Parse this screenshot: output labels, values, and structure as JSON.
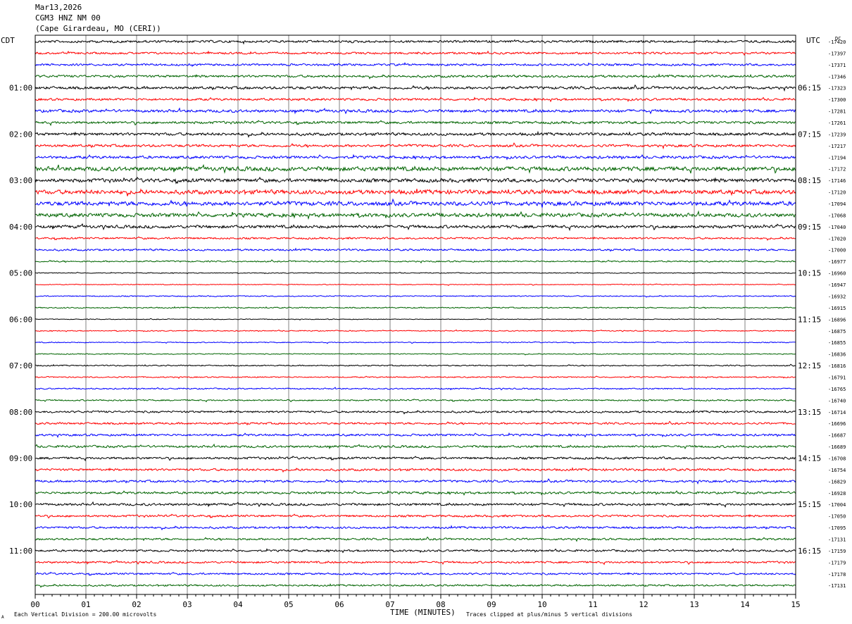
{
  "header": {
    "date": "Mar13,2026",
    "station": "CGM3 HNZ NM 00",
    "location": "(Cape Girardeau, MO (CERI))"
  },
  "left_label": "CDT",
  "right_label": "UTC",
  "right_corner_label": "DC",
  "footer": {
    "scale_note": "Each Vertical Division =  200.00 microvolts",
    "xlabel": "TIME (MINUTES)",
    "clip_note": "Traces clipped at plus/minus 5 vertical divisions",
    "corner_mark": "A"
  },
  "colors": {
    "black": "#000000",
    "red": "#ff0000",
    "blue": "#0000ff",
    "green": "#006400",
    "grid": "#808080"
  },
  "chart_data": {
    "type": "line",
    "x_ticks": [
      "00",
      "01",
      "02",
      "03",
      "04",
      "05",
      "06",
      "07",
      "08",
      "09",
      "10",
      "11",
      "12",
      "13",
      "14",
      "15"
    ],
    "xlim": [
      0,
      15
    ],
    "trace_color_cycle": [
      "black",
      "red",
      "blue",
      "green"
    ],
    "left_hour_labels": [
      "01:00",
      "02:00",
      "03:00",
      "04:00",
      "05:00",
      "06:00",
      "07:00",
      "08:00",
      "09:00",
      "10:00",
      "11:00"
    ],
    "right_hour_labels": [
      "06:15",
      "07:15",
      "08:15",
      "09:15",
      "10:15",
      "11:15",
      "12:15",
      "13:15",
      "14:15",
      "15:15",
      "16:15"
    ],
    "dc_offsets": [
      "-17420",
      "-17397",
      "-17371",
      "-17346",
      "-17323",
      "-17300",
      "-17281",
      "-17261",
      "-17239",
      "-17217",
      "-17194",
      "-17172",
      "-17146",
      "-17120",
      "-17094",
      "-17068",
      "-17040",
      "-17020",
      "-17000",
      "-16977",
      "-16960",
      "-16947",
      "-16932",
      "-16915",
      "-16896",
      "-16875",
      "-16855",
      "-16836",
      "-16816",
      "-16791",
      "-16765",
      "-16740",
      "-16714",
      "-16696",
      "-16687",
      "-16689",
      "-16708",
      "-16754",
      "-16829",
      "-16928",
      "-17004",
      "-17050",
      "-17095",
      "-17131",
      "-17159",
      "-17179",
      "-17178",
      "-17131"
    ],
    "trace_noise": [
      2.0,
      1.8,
      1.8,
      2.0,
      2.3,
      1.9,
      2.4,
      2.1,
      2.4,
      2.2,
      2.3,
      3.6,
      3.1,
      3.6,
      3.5,
      3.2,
      2.6,
      1.6,
      1.6,
      1.2,
      0.7,
      0.7,
      0.9,
      1.0,
      0.6,
      0.8,
      0.8,
      0.8,
      1.0,
      1.0,
      1.1,
      1.2,
      1.7,
      1.7,
      1.8,
      1.9,
      1.9,
      1.9,
      1.9,
      1.9,
      2.0,
      1.8,
      1.8,
      1.7,
      1.7,
      1.7,
      1.6,
      1.5
    ]
  }
}
